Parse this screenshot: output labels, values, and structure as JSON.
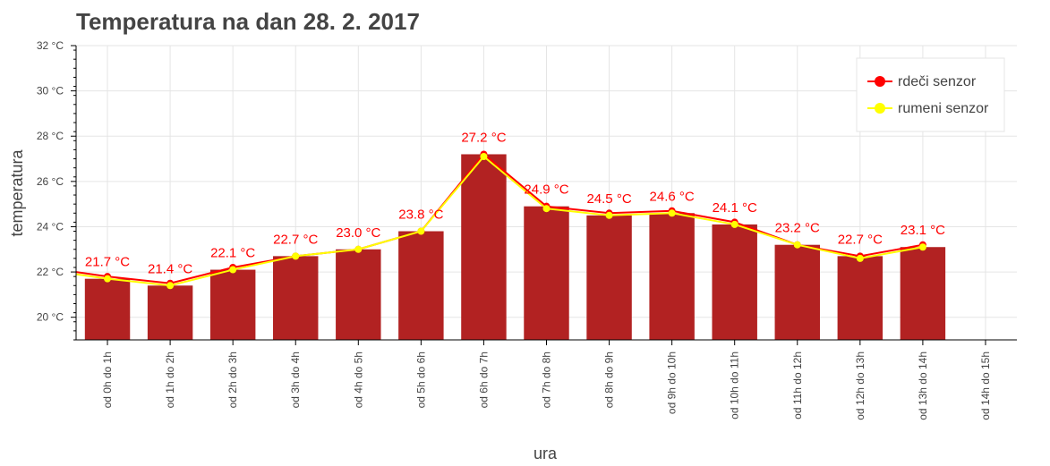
{
  "chart_data": {
    "type": "bar",
    "title": "Temperatura na dan 28. 2. 2017",
    "xlabel": "ura",
    "ylabel": "temperatura",
    "ylim": [
      19,
      32
    ],
    "yticks": [
      "20 °C",
      "22 °C",
      "24 °C",
      "26 °C",
      "28 °C",
      "30 °C",
      "32 °C"
    ],
    "yticks_values": [
      20,
      22,
      24,
      26,
      28,
      30,
      32
    ],
    "grid": true,
    "legend_position": "top-right",
    "categories": [
      "od 0h do 1h",
      "od 1h do 2h",
      "od 2h do 3h",
      "od 3h do 4h",
      "od 4h do 5h",
      "od 5h do 6h",
      "od 6h do 7h",
      "od 7h do 8h",
      "od 8h do 9h",
      "od 9h do 10h",
      "od 10h do 11h",
      "od 11h do 12h",
      "od 12h do 13h",
      "od 13h do 14h",
      "od 14h do 15h"
    ],
    "bar_values": [
      21.7,
      21.4,
      22.1,
      22.7,
      23.0,
      23.8,
      27.2,
      24.9,
      24.5,
      24.6,
      24.1,
      23.2,
      22.7,
      23.1,
      null
    ],
    "bar_labels": [
      "21.7 °C",
      "21.4 °C",
      "22.1 °C",
      "22.7 °C",
      "23.0 °C",
      "23.8 °C",
      "27.2 °C",
      "24.9 °C",
      "24.5 °C",
      "24.6 °C",
      "24.1 °C",
      "23.2 °C",
      "22.7 °C",
      "23.1 °C",
      ""
    ],
    "bar_color": "#b22222",
    "label_color": "#ff0000",
    "series": [
      {
        "name": "rdeči senzor",
        "color": "#ff0000",
        "x": [
          -0.5,
          0,
          1,
          2,
          3,
          4,
          5,
          6,
          7,
          8,
          9,
          10,
          11,
          12,
          13
        ],
        "y": [
          22.0,
          21.8,
          21.5,
          22.2,
          22.7,
          23.0,
          23.8,
          27.2,
          24.9,
          24.6,
          24.7,
          24.2,
          23.2,
          22.7,
          23.2
        ]
      },
      {
        "name": "rumeni senzor",
        "color": "#ffff00",
        "x": [
          -0.5,
          0,
          1,
          2,
          3,
          4,
          5,
          6,
          7,
          8,
          9,
          10,
          11,
          12,
          13
        ],
        "y": [
          21.9,
          21.7,
          21.4,
          22.1,
          22.7,
          23.0,
          23.8,
          27.1,
          24.8,
          24.5,
          24.6,
          24.1,
          23.2,
          22.6,
          23.1
        ]
      }
    ]
  }
}
